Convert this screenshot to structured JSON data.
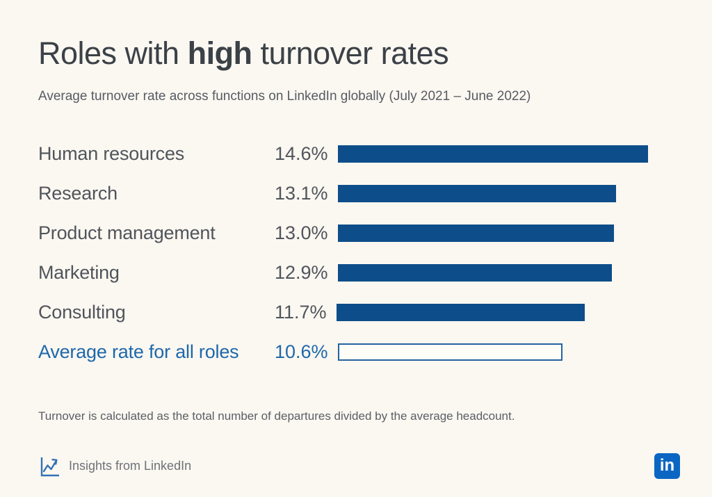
{
  "page": {
    "background": "#fbf7f1"
  },
  "header": {
    "title_prefix": "Roles with ",
    "title_emphasis": "high",
    "title_suffix": " turnover rates",
    "subtitle": "Average turnover rate across functions on LinkedIn globally (July 2021 – June 2022)"
  },
  "chart_data": {
    "type": "bar",
    "orientation": "horizontal",
    "title": "Roles with high turnover rates",
    "subtitle": "Average turnover rate across functions on LinkedIn globally (July 2021 – June 2022)",
    "categories": [
      "Human resources",
      "Research",
      "Product management",
      "Marketing",
      "Consulting",
      "Average rate for all roles"
    ],
    "values": [
      14.6,
      13.1,
      13.0,
      12.9,
      11.7,
      10.6
    ],
    "value_labels": [
      "14.6%",
      "13.1%",
      "13.0%",
      "12.9%",
      "11.7%",
      "10.6%"
    ],
    "xlim": [
      0,
      14.6
    ],
    "grid": false,
    "legend": false,
    "bar_color": "#0d4d89",
    "average_row_index": 5,
    "average_bar_style": "outlined",
    "average_color": "#1e68ab"
  },
  "footnote": "Turnover is calculated as the total number of departures divided by the average headcount.",
  "attribution": {
    "icon": "line-chart-icon",
    "icon_color": "#3173b5",
    "label": "Insights from LinkedIn"
  },
  "logo": {
    "text": "in",
    "background": "#0a66c2"
  }
}
